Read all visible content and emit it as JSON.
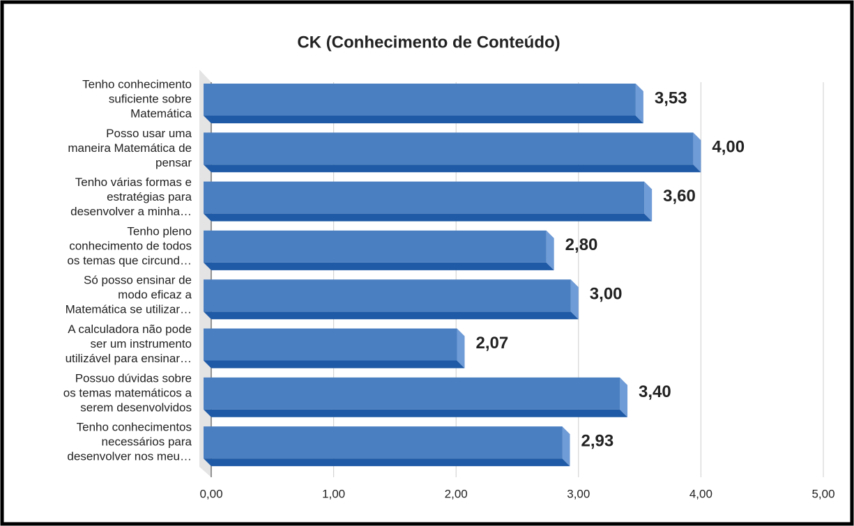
{
  "chart_data": {
    "type": "bar3d_horizontal",
    "title": "CK (Conhecimento de Conteúdo)",
    "categories": [
      [
        "Tenho conhecimento",
        "suficiente sobre",
        "Matemática"
      ],
      [
        "Posso usar uma",
        "maneira Matemática de",
        "pensar"
      ],
      [
        "Tenho várias formas e",
        "estratégias para",
        "desenvolver a minha…"
      ],
      [
        "Tenho pleno",
        "conhecimento de todos",
        "os temas que circund…"
      ],
      [
        "Só posso ensinar de",
        "modo eficaz a",
        "Matemática se utilizar…"
      ],
      [
        "A calculadora não pode",
        "ser um instrumento",
        "utilizável para ensinar…"
      ],
      [
        "Possuo dúvidas sobre",
        "os temas matemáticos a",
        "serem desenvolvidos"
      ],
      [
        "Tenho conhecimentos",
        "necessários para",
        "desenvolver nos meu…"
      ]
    ],
    "values": [
      3.53,
      4.0,
      3.6,
      2.8,
      3.0,
      2.07,
      3.4,
      2.93
    ],
    "value_labels": [
      "3,53",
      "4,00",
      "3,60",
      "2,80",
      "3,00",
      "2,07",
      "3,40",
      "2,93"
    ],
    "color": "#4a7fc1",
    "xlim": [
      0,
      5
    ],
    "xticks": [
      {
        "value": 0,
        "label": "0,00"
      },
      {
        "value": 1,
        "label": "1,00"
      },
      {
        "value": 2,
        "label": "2,00"
      },
      {
        "value": 3,
        "label": "3,00"
      },
      {
        "value": 4,
        "label": "4,00"
      },
      {
        "value": 5,
        "label": "5,00"
      }
    ],
    "grid": true
  }
}
